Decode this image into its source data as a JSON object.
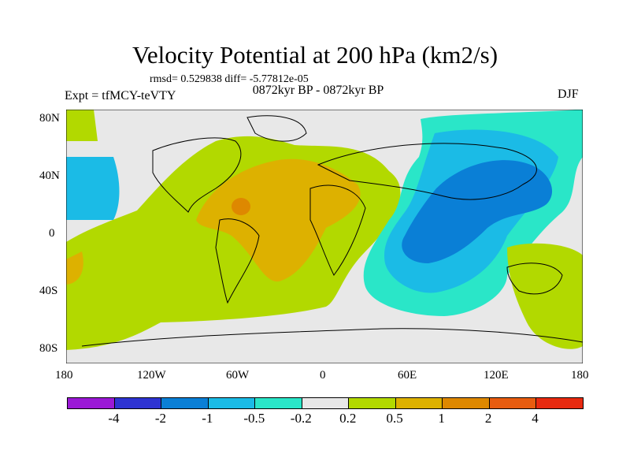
{
  "header": {
    "title": "Velocity Potential at 200 hPa (km2/s)",
    "stats": "rmsd= 0.529838 diff= -5.77812e-05",
    "experiment": "Expt = tfMCY-teVTY",
    "period": "0872kyr BP - 0872kyr BP",
    "season": "DJF"
  },
  "axes": {
    "y_ticks": [
      "80N",
      "40N",
      "0",
      "40S",
      "80S"
    ],
    "x_ticks": [
      "180",
      "120W",
      "60W",
      "0",
      "60E",
      "120E",
      "180"
    ]
  },
  "colorbar": {
    "colors": [
      "#9b19d6",
      "#2e34d2",
      "#0a7fd6",
      "#1bbbe6",
      "#2ae6c8",
      "#e8e8e8",
      "#b2d900",
      "#ddb100",
      "#de8800",
      "#e85c10",
      "#e82a10"
    ],
    "labels": [
      "-4",
      "-2",
      "-1",
      "-0.5",
      "-0.2",
      "0.2",
      "0.5",
      "1",
      "2",
      "4"
    ]
  }
}
